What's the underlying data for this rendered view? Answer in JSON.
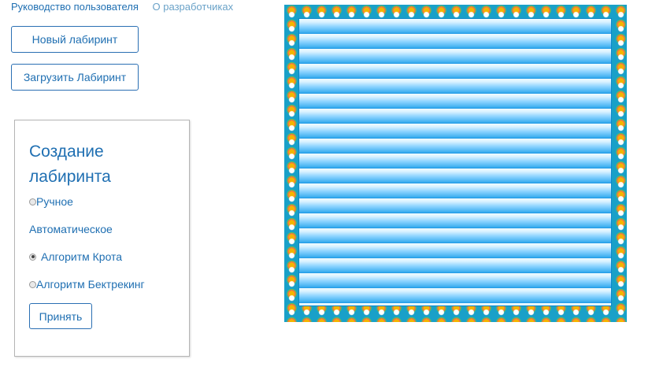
{
  "nav": {
    "user_guide": "Руководство пользователя",
    "about": "О разработчиках"
  },
  "actions": {
    "new_maze": "Новый лабиринт",
    "load_maze": "Загрузить Лабиринт"
  },
  "panel": {
    "title": "Создание лабиринта",
    "option_manual": "Ручное",
    "group_auto": "Автоматическое",
    "option_krot": "Алгоритм Крота",
    "option_backtracking": "Алгоритм Бектрекинг",
    "selected": "Алгоритм Крота",
    "accept": "Принять"
  },
  "colors": {
    "accent": "#1f6fb2",
    "maze_border": "#19a0c8",
    "maze_fill": "#3fb0f0"
  }
}
